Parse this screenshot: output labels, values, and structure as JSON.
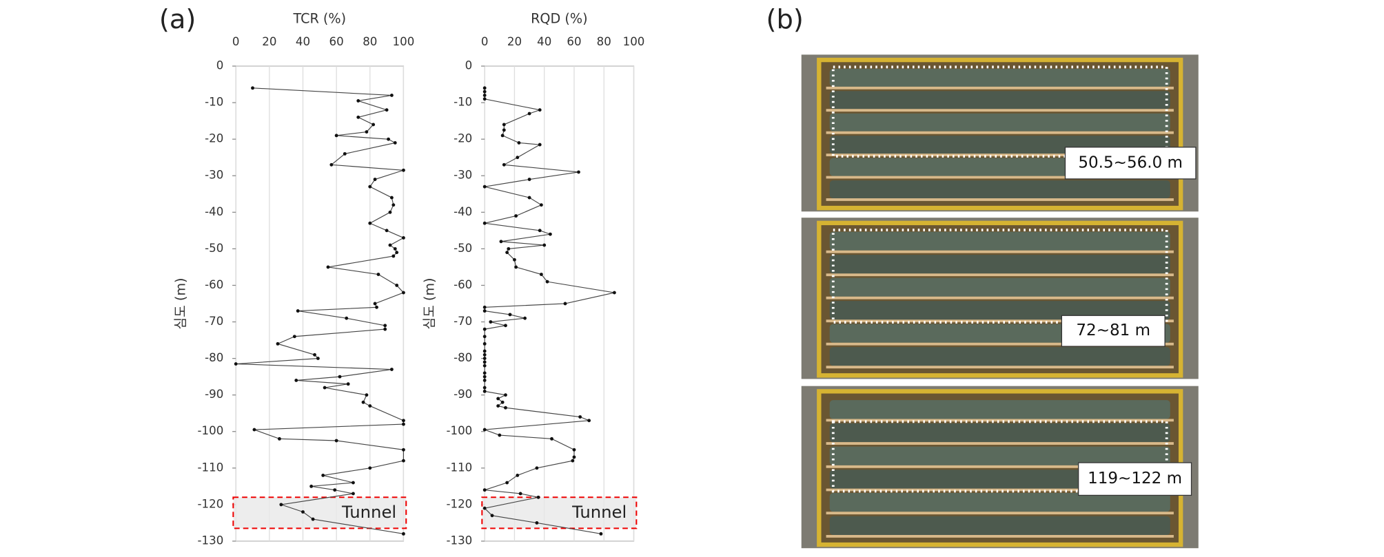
{
  "panel_labels": [
    "(a)",
    "(b)"
  ],
  "chart_data": [
    {
      "type": "line",
      "title": "TCR (%)",
      "ylabel": "심도 (m)",
      "xlim": [
        0,
        100
      ],
      "xticks": [
        0,
        20,
        40,
        60,
        80,
        100
      ],
      "ylim": [
        -130,
        0
      ],
      "yticks": [
        0,
        -10,
        -20,
        -30,
        -40,
        -50,
        -60,
        -70,
        -80,
        -90,
        -100,
        -110,
        -120,
        -130
      ],
      "grid": true,
      "color": "#444",
      "highlight": {
        "label": "Tunnel",
        "range": [
          -118,
          -126.5
        ]
      },
      "x": [
        10,
        93,
        73,
        90,
        73,
        82,
        78,
        60,
        91,
        95,
        65,
        57,
        100,
        83,
        80,
        93,
        94,
        92,
        80,
        90,
        100,
        92,
        95,
        96,
        94,
        55,
        85,
        96,
        100,
        83,
        84,
        37,
        66,
        89,
        89,
        35,
        25,
        47,
        49,
        0,
        93,
        62,
        36,
        67,
        53,
        78,
        76,
        80,
        100,
        100,
        11,
        26,
        60,
        100,
        100,
        80,
        52,
        70,
        45,
        59,
        70,
        27,
        40,
        46,
        100
      ],
      "y": [
        -6,
        -8,
        -9.5,
        -12,
        -14,
        -16,
        -18,
        -19,
        -20,
        -21,
        -24,
        -27,
        -28.5,
        -31,
        -33,
        -36,
        -38,
        -40,
        -43,
        -45,
        -47,
        -49,
        -50,
        -51,
        -52,
        -55,
        -57,
        -60,
        -62,
        -65,
        -66,
        -67,
        -69,
        -71,
        -72,
        -74,
        -76,
        -79,
        -80,
        -81.5,
        -83,
        -85,
        -86,
        -87,
        -88,
        -90,
        -92,
        -93,
        -97,
        -98,
        -99.5,
        -102,
        -102.5,
        -105,
        -108,
        -110,
        -112,
        -114,
        -115,
        -116,
        -117,
        -120,
        -122,
        -124,
        -128
      ]
    },
    {
      "type": "line",
      "title": "RQD (%)",
      "ylabel": "심도 (m)",
      "xlim": [
        0,
        100
      ],
      "xticks": [
        0,
        20,
        40,
        60,
        80,
        100
      ],
      "ylim": [
        -130,
        0
      ],
      "yticks": [
        0,
        -10,
        -20,
        -30,
        -40,
        -50,
        -60,
        -70,
        -80,
        -90,
        -100,
        -110,
        -120,
        -130
      ],
      "grid": true,
      "color": "#444",
      "highlight": {
        "label": "Tunnel",
        "range": [
          -118,
          -126.5
        ]
      },
      "x": [
        0,
        0,
        0,
        0,
        37,
        30,
        13,
        13,
        12,
        23,
        37,
        22,
        13,
        63,
        30,
        0,
        30,
        38,
        21,
        0,
        37,
        44,
        11,
        40,
        16,
        15,
        20,
        21,
        38,
        42,
        87,
        54,
        0,
        0,
        17,
        27,
        4,
        14,
        0,
        0,
        0,
        0,
        0,
        0,
        0,
        0,
        0,
        0,
        0,
        0,
        0,
        14,
        9,
        12,
        9,
        14,
        64,
        70,
        0,
        10,
        45,
        60,
        60,
        59,
        35,
        22,
        15,
        0,
        24,
        36,
        0,
        5,
        35,
        78
      ],
      "y": [
        -6,
        -7,
        -8,
        -9,
        -12,
        -13,
        -16,
        -17.5,
        -19,
        -21,
        -21.5,
        -25,
        -27,
        -29,
        -31,
        -33,
        -36,
        -38,
        -41,
        -43,
        -45,
        -46,
        -48,
        -49,
        -50,
        -51,
        -53,
        -55,
        -57,
        -59,
        -62,
        -65,
        -66,
        -67,
        -68,
        -69,
        -70,
        -71,
        -72,
        -74,
        -76,
        -78,
        -79,
        -80,
        -81,
        -82,
        -84,
        -85,
        -86,
        -88,
        -89,
        -90,
        -91,
        -92,
        -93,
        -93.5,
        -96,
        -97,
        -99.5,
        -101,
        -102,
        -105,
        -107,
        -108,
        -110,
        -112,
        -114,
        -116,
        -117,
        -118,
        -121,
        -123,
        -125,
        -128
      ]
    }
  ],
  "photos": [
    {
      "label": "50.5~56.0 m"
    },
    {
      "label": "72~81 m"
    },
    {
      "label": "119~122 m"
    }
  ]
}
